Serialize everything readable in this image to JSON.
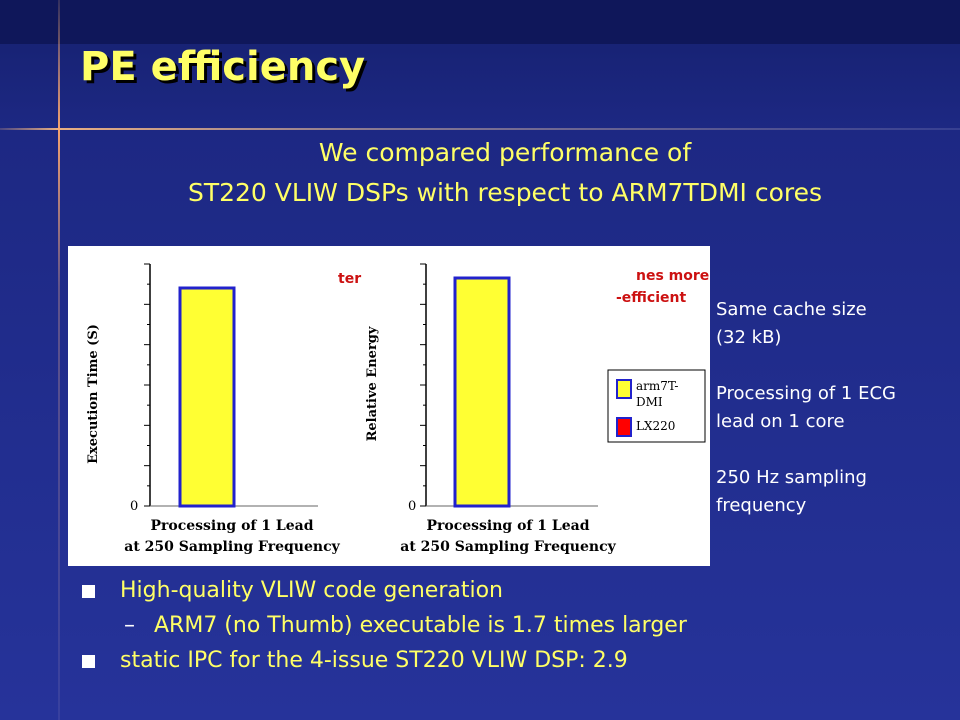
{
  "slide": {
    "title": "PE efficiency",
    "subtitle_line1": "We compared performance of",
    "subtitle_line2": "ST220 VLIW DSPs with respect to ARM7TDMI cores",
    "notes": [
      "Same cache size",
      "(32 kB)",
      "Processing of 1 ECG",
      "lead on 1 core",
      "250 Hz sampling",
      "frequency"
    ],
    "bullets": {
      "b1": "High-quality VLIW code generation",
      "b1_sub": "ARM7 (no Thumb) executable is 1.7 times larger",
      "b2": "static IPC for the 4-issue ST220 VLIW DSP: 2.9"
    }
  },
  "colors": {
    "title": "#ffff66",
    "arm_bar": "#ffff33",
    "lx_bar": "#ff0000",
    "bar_stroke": "#2222cc"
  },
  "chart_data": [
    {
      "type": "bar",
      "ylabel": "Execution Time (S)",
      "xlabel_line1": "Processing of 1 Lead",
      "xlabel_line2": "at 250 Sampling Frequency",
      "y_tick_label": "0",
      "overlay_text": "ter",
      "series": [
        {
          "name": "arm7T-DMI",
          "values": [
            1.0
          ]
        },
        {
          "name": "LX220",
          "values": [
            0.0
          ]
        }
      ]
    },
    {
      "type": "bar",
      "ylabel": "Relative Energy",
      "xlabel_line1": "Processing of 1 Lead",
      "xlabel_line2": "at 250 Sampling Frequency",
      "y_tick_label": "0",
      "overlay_text_line1": "nes more",
      "overlay_text_line2": "-efficient",
      "legend": [
        "arm7T-",
        "DMI",
        "LX220"
      ],
      "series": [
        {
          "name": "arm7T-DMI",
          "values": [
            1.0
          ]
        },
        {
          "name": "LX220",
          "values": [
            0.0
          ]
        }
      ]
    }
  ]
}
